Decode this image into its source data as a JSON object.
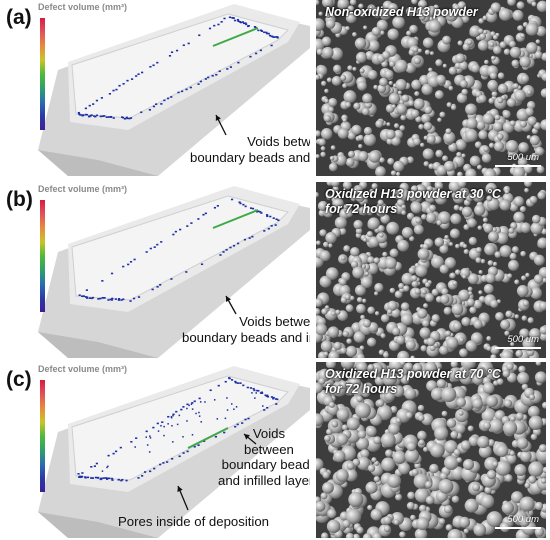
{
  "colorbar_title": "Defect volume (mm³)",
  "colorbar_colors": [
    "#d81c3f",
    "#e0525a",
    "#e88a3a",
    "#c9c42a",
    "#4fba3a",
    "#2fa06a",
    "#2a6fb0",
    "#2a3aa8",
    "#3c1f9a"
  ],
  "panels": [
    {
      "label": "(a)",
      "sem_title": [
        "Non-oxidized H13 powder"
      ],
      "scale_label": "500 um",
      "annotations": [
        {
          "lines": [
            "Voids between",
            "boundary beads and infilled layers"
          ]
        }
      ]
    },
    {
      "label": "(b)",
      "sem_title": [
        "Oxidized H13 powder at 30 °C",
        "for 72 hours"
      ],
      "scale_label": "500 um",
      "annotations": [
        {
          "lines": [
            "Voids between",
            "boundary beads and infilled layers"
          ]
        }
      ]
    },
    {
      "label": "(c)",
      "sem_title": [
        "Oxidized H13 powder at 70 °C",
        "for 72 hours"
      ],
      "scale_label": "500 um",
      "annotations": [
        {
          "lines": [
            "Voids",
            "between",
            "boundary beads",
            "and infilled layers"
          ]
        },
        {
          "lines": [
            "Pores inside of deposition"
          ]
        }
      ]
    }
  ]
}
